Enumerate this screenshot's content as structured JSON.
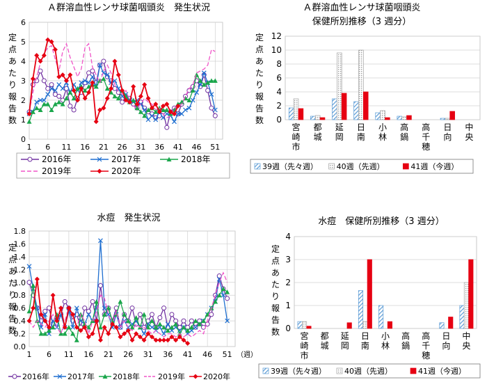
{
  "palette": {
    "y2016": "#7030A0",
    "y2017": "#1F6FD0",
    "y2018": "#1AA64B",
    "y2019": "#F055C8",
    "y2020": "#E60012",
    "w39": "#5B9BD5",
    "w40": "#A0A0A0",
    "w41": "#E60012"
  },
  "legend_year_labels": [
    "2016年",
    "2017年",
    "2018年",
    "2019年",
    "2020年"
  ],
  "legend_week_labels": [
    "39週（先々週）",
    "40週（先週）",
    "41週（今週）"
  ],
  "y_axis_label": "定点あたり報告数",
  "chart_data": [
    {
      "id": "strep_trend",
      "type": "line",
      "title": "Ａ群溶血性レンサ球菌咽頭炎　発生状況",
      "xlabel": "",
      "x_tick_labels": [
        "1",
        "6",
        "11",
        "16",
        "21",
        "26",
        "31",
        "36",
        "41",
        "46",
        "51"
      ],
      "x_ticks": [
        1,
        6,
        11,
        16,
        21,
        26,
        31,
        36,
        41,
        46,
        51
      ],
      "xlim": [
        1,
        53
      ],
      "ylim": [
        0,
        6
      ],
      "y_ticks": [
        0,
        1,
        2,
        3,
        4,
        5,
        6
      ],
      "series": [
        {
          "name": "2016年",
          "values": [
            1.4,
            2.8,
            3.0,
            3.5,
            3.0,
            2.6,
            2.8,
            2.3,
            2.2,
            2.0,
            2.6,
            1.7,
            1.5,
            2.1,
            2.4,
            2.9,
            3.4,
            3.5,
            2.9,
            3.8,
            4.0,
            3.2,
            3.0,
            2.6,
            2.4,
            1.9,
            2.2,
            2.1,
            1.8,
            1.6,
            1.9,
            1.6,
            1.4,
            1.3,
            1.1,
            1.2,
            1.4,
            0.6,
            1.4,
            1.6,
            1.3,
            1.8,
            2.2,
            2.5,
            2.7,
            3.0,
            2.7,
            3.3,
            2.5,
            1.6,
            1.2
          ]
        },
        {
          "name": "2017年",
          "values": [
            1.3,
            1.4,
            1.9,
            2.0,
            2.0,
            2.3,
            2.6,
            2.5,
            2.8,
            2.6,
            2.9,
            2.4,
            2.8,
            2.5,
            2.9,
            3.0,
            2.9,
            3.2,
            2.7,
            3.8,
            3.4,
            3.3,
            2.9,
            3.0,
            2.6,
            2.2,
            2.3,
            2.0,
            1.9,
            2.0,
            1.8,
            1.5,
            1.0,
            1.2,
            1.0,
            1.4,
            1.1,
            1.3,
            1.2,
            0.9,
            1.3,
            1.3,
            1.5,
            1.6,
            2.0,
            2.4,
            2.8,
            3.4,
            2.9,
            2.3,
            1.5
          ]
        },
        {
          "name": "2018年",
          "values": [
            0.9,
            1.4,
            1.6,
            1.5,
            1.8,
            1.8,
            1.5,
            1.8,
            1.9,
            1.8,
            2.1,
            2.4,
            2.1,
            2.6,
            2.7,
            2.5,
            2.7,
            2.8,
            2.7,
            3.0,
            3.1,
            2.6,
            2.4,
            2.2,
            2.1,
            2.5,
            2.2,
            1.9,
            2.0,
            1.6,
            1.4,
            1.2,
            1.5,
            1.6,
            1.4,
            1.6,
            1.5,
            1.5,
            1.3,
            1.5,
            1.8,
            1.9,
            2.1,
            2.0,
            2.5,
            3.3,
            3.0,
            2.8,
            2.9,
            3.0,
            3.0
          ]
        },
        {
          "name": "2019年",
          "values": [
            1.4,
            2.4,
            3.2,
            3.9,
            4.4,
            4.7,
            4.8,
            4.1,
            3.5,
            4.5,
            4.9,
            4.2,
            3.7,
            3.2,
            3.6,
            4.7,
            4.9,
            3.7,
            3.3,
            2.9,
            3.5,
            3.8,
            3.4,
            2.8,
            2.4,
            2.3,
            2.5,
            2.0,
            1.7,
            1.6,
            1.8,
            2.1,
            1.9,
            1.8,
            1.5,
            1.6,
            1.3,
            1.1,
            1.2,
            1.6,
            1.7,
            1.8,
            2.2,
            2.6,
            2.8,
            3.4,
            3.5,
            3.6,
            3.8,
            4.6,
            4.5
          ]
        },
        {
          "name": "2020年",
          "values": [
            1.3,
            3.1,
            4.3,
            4.0,
            4.3,
            5.1,
            5.0,
            4.6,
            3.2,
            3.3,
            3.0,
            3.3,
            2.5,
            2.0,
            2.6,
            2.1,
            2.4,
            2.9,
            0.9,
            1.5,
            1.6,
            2.1,
            2.6,
            4.0,
            3.3,
            2.5,
            2.0,
            1.9,
            2.7,
            1.8,
            2.2,
            2.8,
            2.1,
            1.6,
            1.8,
            1.4,
            1.7,
            1.8,
            1.4,
            1.3,
            1.7
          ]
        }
      ]
    },
    {
      "id": "strep_bar",
      "type": "bar",
      "title": "Ａ群溶血性レンサ球菌咽頭炎",
      "subtitle": "保健所別推移（3 週分）",
      "categories": [
        "宮崎市",
        "都城",
        "延岡",
        "日南",
        "小林",
        "高鍋",
        "高千穂",
        "日向",
        "中央"
      ],
      "ylim": [
        0,
        12
      ],
      "y_ticks": [
        0,
        2,
        4,
        6,
        8,
        10,
        12
      ],
      "series": [
        {
          "name": "39週（先々週）",
          "values": [
            1.7,
            0.5,
            3.0,
            2.6,
            1.0,
            0.5,
            0.0,
            0.2,
            0.0
          ]
        },
        {
          "name": "40週（先週）",
          "values": [
            3.0,
            0.6,
            9.6,
            10.0,
            1.3,
            0.4,
            0.0,
            0.2,
            0.0
          ]
        },
        {
          "name": "41週（今週）",
          "values": [
            1.6,
            0.3,
            3.8,
            4.0,
            0.3,
            0.6,
            0.0,
            1.2,
            0.0
          ]
        }
      ]
    },
    {
      "id": "varicella_trend",
      "type": "line",
      "title": "水痘　発生状況",
      "xlabel": "（週）",
      "x_tick_labels": [
        "1",
        "6",
        "11",
        "16",
        "21",
        "26",
        "31",
        "36",
        "41",
        "46",
        "51"
      ],
      "x_ticks": [
        1,
        6,
        11,
        16,
        21,
        26,
        31,
        36,
        41,
        46,
        51
      ],
      "xlim": [
        1,
        53
      ],
      "ylim": [
        0,
        1.8
      ],
      "y_ticks": [
        0.0,
        0.2,
        0.4,
        0.6,
        0.8,
        1.0,
        1.2,
        1.4,
        1.6,
        1.8
      ],
      "series": [
        {
          "name": "2016年",
          "values": [
            1.0,
            0.8,
            0.6,
            0.4,
            0.55,
            0.6,
            0.35,
            0.45,
            0.5,
            0.7,
            0.6,
            0.4,
            0.5,
            0.3,
            0.6,
            0.55,
            0.7,
            0.4,
            0.95,
            0.5,
            0.6,
            0.4,
            0.6,
            0.3,
            0.5,
            0.4,
            0.6,
            0.35,
            0.5,
            0.3,
            0.4,
            0.5,
            0.3,
            0.45,
            0.6,
            0.3,
            0.5,
            0.4,
            0.3,
            0.4,
            0.3,
            0.4,
            0.3,
            0.4,
            0.3,
            0.35,
            0.5,
            0.8,
            1.1,
            0.9,
            0.75
          ]
        },
        {
          "name": "2017年",
          "values": [
            1.25,
            0.9,
            0.6,
            0.3,
            0.5,
            0.2,
            0.4,
            0.3,
            0.5,
            0.3,
            0.55,
            0.3,
            0.6,
            0.4,
            0.35,
            0.5,
            0.4,
            0.6,
            1.65,
            0.6,
            0.5,
            0.3,
            0.5,
            0.3,
            0.4,
            0.3,
            0.35,
            0.4,
            0.3,
            0.2,
            0.35,
            0.3,
            0.25,
            0.3,
            0.2,
            0.35,
            0.25,
            0.3,
            0.25,
            0.3,
            0.2,
            0.25,
            0.3,
            0.35,
            0.4,
            0.5,
            0.6,
            0.7,
            1.05,
            0.8,
            0.4
          ]
        },
        {
          "name": "2018年",
          "values": [
            0.55,
            0.95,
            0.4,
            0.2,
            0.2,
            0.25,
            0.3,
            0.5,
            0.2,
            0.2,
            0.3,
            0.2,
            0.1,
            0.5,
            0.35,
            0.3,
            0.4,
            0.7,
            0.3,
            0.5,
            0.6,
            0.4,
            0.5,
            0.7,
            0.5,
            0.4,
            0.3,
            0.45,
            0.3,
            0.5,
            0.3,
            0.4,
            0.3,
            0.35,
            0.3,
            0.25,
            0.3,
            0.35,
            0.2,
            0.3,
            0.25,
            0.3,
            0.4,
            0.35,
            0.4,
            0.5,
            0.6,
            0.7,
            0.8,
            0.9,
            0.85
          ]
        },
        {
          "name": "2019年",
          "values": [
            0.4,
            0.3,
            0.4,
            0.35,
            0.3,
            0.4,
            0.5,
            0.3,
            0.2,
            0.4,
            0.6,
            0.5,
            0.3,
            0.5,
            0.4,
            0.2,
            0.4,
            0.55,
            0.8,
            0.75,
            0.5,
            0.35,
            0.55,
            0.3,
            0.4,
            0.3,
            0.25,
            0.35,
            0.3,
            0.3,
            0.25,
            0.2,
            0.25,
            0.2,
            0.15,
            0.2,
            0.2,
            0.15,
            0.2,
            0.15,
            0.2,
            0.15,
            0.2,
            0.25,
            0.2,
            0.4,
            0.6,
            0.8,
            1.0,
            1.15,
            1.0
          ]
        },
        {
          "name": "2020年",
          "values": [
            0.4,
            0.6,
            1.05,
            0.5,
            0.4,
            0.3,
            0.8,
            0.4,
            0.6,
            0.3,
            0.6,
            0.5,
            0.3,
            0.25,
            0.3,
            0.15,
            0.2,
            0.4,
            0.1,
            0.3,
            0.2,
            0.35,
            0.3,
            0.15,
            0.2,
            0.25,
            0.1,
            0.2,
            0.15,
            0.1,
            0.2,
            0.15,
            0.1,
            0.1,
            0.1,
            0.1,
            0.15,
            0.1,
            0.15,
            0.1,
            0.05
          ]
        }
      ]
    },
    {
      "id": "varicella_bar",
      "type": "bar",
      "title": "水痘　保健所別推移（3 週分）",
      "categories": [
        "宮崎市",
        "都城",
        "延岡",
        "日南",
        "小林",
        "高鍋",
        "高千穂",
        "日向",
        "中央"
      ],
      "ylim": [
        0,
        4
      ],
      "y_ticks": [
        0,
        1,
        2,
        3,
        4
      ],
      "series": [
        {
          "name": "39週（先々週）",
          "values": [
            0.3,
            0.0,
            0.0,
            1.65,
            1.0,
            0.0,
            0.0,
            0.25,
            1.0
          ]
        },
        {
          "name": "40週（先週）",
          "values": [
            0.3,
            0.0,
            0.0,
            0.3,
            0.0,
            0.0,
            0.0,
            0.0,
            2.0
          ]
        },
        {
          "name": "41週（今週）",
          "values": [
            0.1,
            0.0,
            0.25,
            3.0,
            0.3,
            0.0,
            0.0,
            0.5,
            3.0
          ]
        }
      ]
    }
  ]
}
